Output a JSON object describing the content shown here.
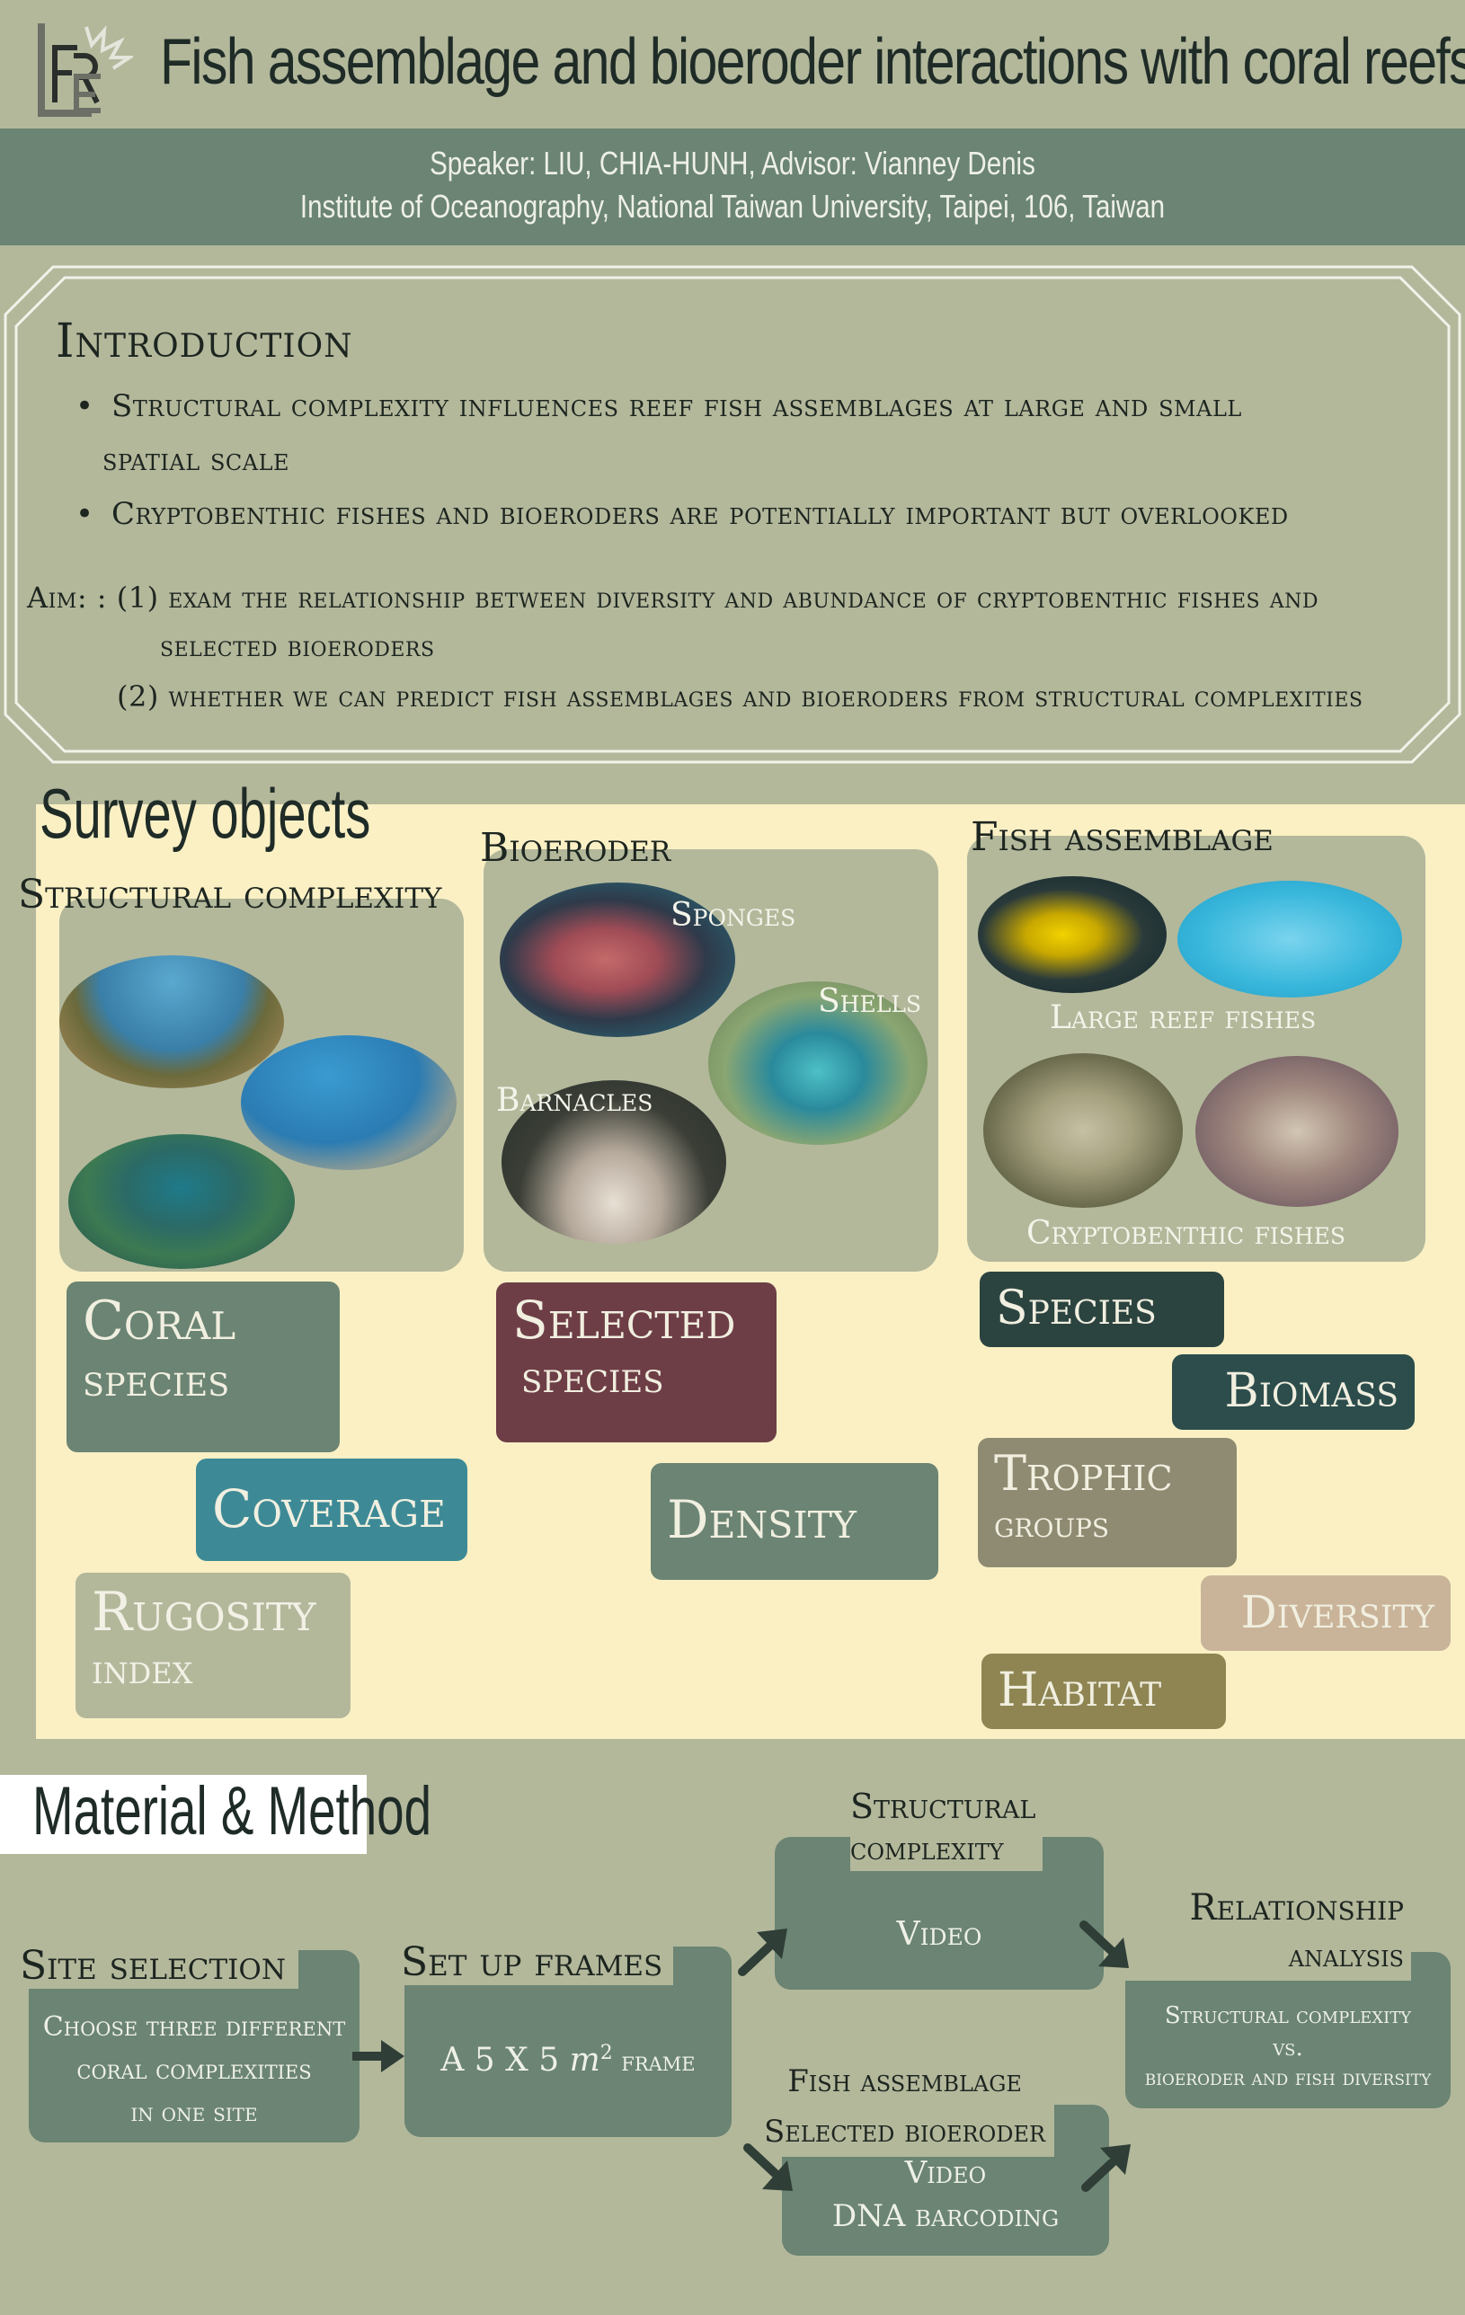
{
  "header": {
    "logo_text": "FRE",
    "title": "Fish assemblage and bioeroder interactions with coral reefs",
    "speaker_line": "Speaker: LIU, CHIA-HUNH, Advisor: Vianney Denis",
    "institute_line": "Institute of Oceanography, National Taiwan University, Taipei, 106, Taiwan"
  },
  "introduction": {
    "heading": "Introduction",
    "bullets": [
      "Structural complexity influences reef fish assemblages at large and small",
      "spatial scale",
      "Cryptobenthic fishes and bioeroders are potentially important but overlooked"
    ],
    "aim_line1": "Aim: : (1) exam the relationship between diversity and abundance of cryptobenthic fishes and",
    "aim_line2": "selected bioeroders",
    "aim_line3": "(2) whether we can predict fish assemblages and bioeroders from structural complexities"
  },
  "survey": {
    "heading": "Survey objects",
    "structural": {
      "heading": "Structural complexity",
      "tags": [
        "Coral",
        "species",
        "Coverage",
        "Rugosity",
        "index"
      ]
    },
    "bioeroder": {
      "heading": "Bioeroder",
      "photo_labels": [
        "Sponges",
        "Shells",
        "Barnacles"
      ],
      "tags": [
        "Selected",
        "species",
        "Density"
      ]
    },
    "fish": {
      "heading": "Fish assemblage",
      "photo_labels": [
        "Large reef fishes",
        "Cryptobenthic fishes"
      ],
      "tags": [
        "Species",
        "Biomass",
        "Trophic",
        "groups",
        "Diversity",
        "Habitat"
      ]
    }
  },
  "method": {
    "heading": "Material & Method",
    "site_heading": "Site selection",
    "site_text": [
      "Choose three different",
      "coral complexities",
      "in one site"
    ],
    "frames_heading": "Set up frames",
    "frames_text": {
      "a": "A 5 X 5 ",
      "m": "m",
      "sup": "2",
      "frame": " frame"
    },
    "struct_heading": [
      "Structural",
      "complexity"
    ],
    "struct_text": "Video",
    "fish_heading": [
      "Fish assemblage",
      "Selected bioeroder"
    ],
    "fish_text": [
      "Video",
      "DNA barcoding"
    ],
    "rel_heading": [
      "Relationship",
      "analysis"
    ],
    "rel_text": [
      "Structural complexity",
      "vs.",
      "bioeroder and fish diversity"
    ]
  },
  "colors": {
    "background": "#b3b89b",
    "band": "#6b8473",
    "survey_bg": "#faf0c4",
    "tag_coral": "#6b8473",
    "tag_coverage": "#3d8a96",
    "tag_rugosity": "#b3b89b",
    "tag_selected": "#6e3e47",
    "tag_density": "#6b8473",
    "tag_species": "#2c4440",
    "tag_biomass": "#2c4d4c",
    "tag_trophic": "#8f8b72",
    "tag_diversity": "#c9b49a",
    "tag_habitat": "#8e8553"
  }
}
